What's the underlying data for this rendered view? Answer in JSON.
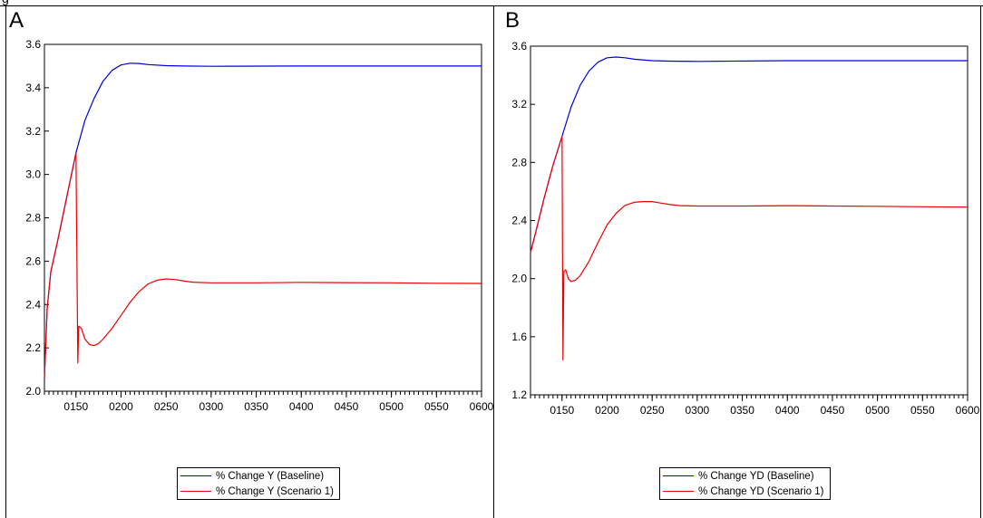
{
  "page": {
    "header_fragment": "g"
  },
  "panels": [
    {
      "letter": "A",
      "legend": [
        "% Change Y (Baseline)",
        "% Change Y (Scenario 1)"
      ]
    },
    {
      "letter": "B",
      "legend": [
        "% Change YD (Baseline)",
        "% Change YD (Scenario 1)"
      ]
    }
  ],
  "colors": {
    "baseline": "#0000dd",
    "scenario": "#ee0000",
    "frame": "#000000"
  },
  "chart_data": [
    {
      "type": "line",
      "title": "",
      "xlabel": "",
      "ylabel": "",
      "x_ticks": [
        "0150",
        "0200",
        "0250",
        "0300",
        "0350",
        "0400",
        "0450",
        "0500",
        "0550",
        "0600"
      ],
      "y_ticks": [
        "2.0",
        "2.2",
        "2.4",
        "2.6",
        "2.8",
        "3.0",
        "3.2",
        "3.4",
        "3.6"
      ],
      "xlim": [
        115,
        600
      ],
      "ylim": [
        2.0,
        3.6
      ],
      "grid": false,
      "legend_position": "bottom-center",
      "series": [
        {
          "name": "% Change Y (Baseline)",
          "color": "#0000dd",
          "x": [
            115,
            118,
            122,
            130,
            140,
            150,
            160,
            170,
            180,
            190,
            200,
            210,
            220,
            230,
            250,
            270,
            300,
            400,
            500,
            600
          ],
          "y": [
            2.06,
            2.38,
            2.55,
            2.7,
            2.9,
            3.1,
            3.25,
            3.35,
            3.43,
            3.48,
            3.505,
            3.513,
            3.512,
            3.507,
            3.502,
            3.5,
            3.499,
            3.5,
            3.5,
            3.5
          ]
        },
        {
          "name": "% Change Y (Scenario 1)",
          "color": "#ee0000",
          "x": [
            115,
            118,
            122,
            130,
            140,
            150,
            152,
            153,
            156,
            160,
            165,
            170,
            175,
            180,
            190,
            200,
            210,
            220,
            230,
            240,
            250,
            260,
            270,
            280,
            300,
            350,
            400,
            450,
            500,
            550,
            600
          ],
          "y": [
            2.06,
            2.38,
            2.55,
            2.7,
            2.9,
            3.1,
            2.13,
            2.3,
            2.29,
            2.24,
            2.215,
            2.21,
            2.22,
            2.24,
            2.29,
            2.35,
            2.41,
            2.46,
            2.495,
            2.512,
            2.518,
            2.515,
            2.508,
            2.503,
            2.5,
            2.5,
            2.502,
            2.501,
            2.5,
            2.498,
            2.497
          ]
        }
      ]
    },
    {
      "type": "line",
      "title": "",
      "xlabel": "",
      "ylabel": "",
      "x_ticks": [
        "0150",
        "0200",
        "0250",
        "0300",
        "0350",
        "0400",
        "0450",
        "0500",
        "0550",
        "0600"
      ],
      "y_ticks": [
        "1.2",
        "1.6",
        "2.0",
        "2.4",
        "2.8",
        "3.2",
        "3.6"
      ],
      "xlim": [
        115,
        600
      ],
      "ylim": [
        1.2,
        3.6
      ],
      "grid": false,
      "legend_position": "bottom-center",
      "series": [
        {
          "name": "% Change YD (Baseline)",
          "color": "#0000dd",
          "x": [
            115,
            120,
            130,
            140,
            150,
            160,
            170,
            180,
            190,
            200,
            210,
            220,
            230,
            250,
            270,
            300,
            400,
            500,
            600
          ],
          "y": [
            2.18,
            2.3,
            2.55,
            2.78,
            2.98,
            3.18,
            3.33,
            3.43,
            3.49,
            3.52,
            3.525,
            3.52,
            3.51,
            3.5,
            3.497,
            3.495,
            3.5,
            3.5,
            3.5
          ]
        },
        {
          "name": "% Change YD (Scenario 1)",
          "color": "#ee0000",
          "x": [
            115,
            120,
            130,
            140,
            150,
            151,
            152,
            154,
            157,
            160,
            165,
            170,
            180,
            190,
            200,
            210,
            220,
            230,
            240,
            250,
            260,
            270,
            280,
            300,
            350,
            400,
            450,
            500,
            550,
            600
          ],
          "y": [
            2.18,
            2.3,
            2.55,
            2.78,
            2.98,
            1.44,
            2.05,
            2.06,
            2.0,
            1.98,
            1.99,
            2.02,
            2.12,
            2.25,
            2.37,
            2.45,
            2.505,
            2.525,
            2.53,
            2.53,
            2.52,
            2.51,
            2.503,
            2.5,
            2.5,
            2.502,
            2.5,
            2.498,
            2.495,
            2.492
          ]
        }
      ]
    }
  ]
}
